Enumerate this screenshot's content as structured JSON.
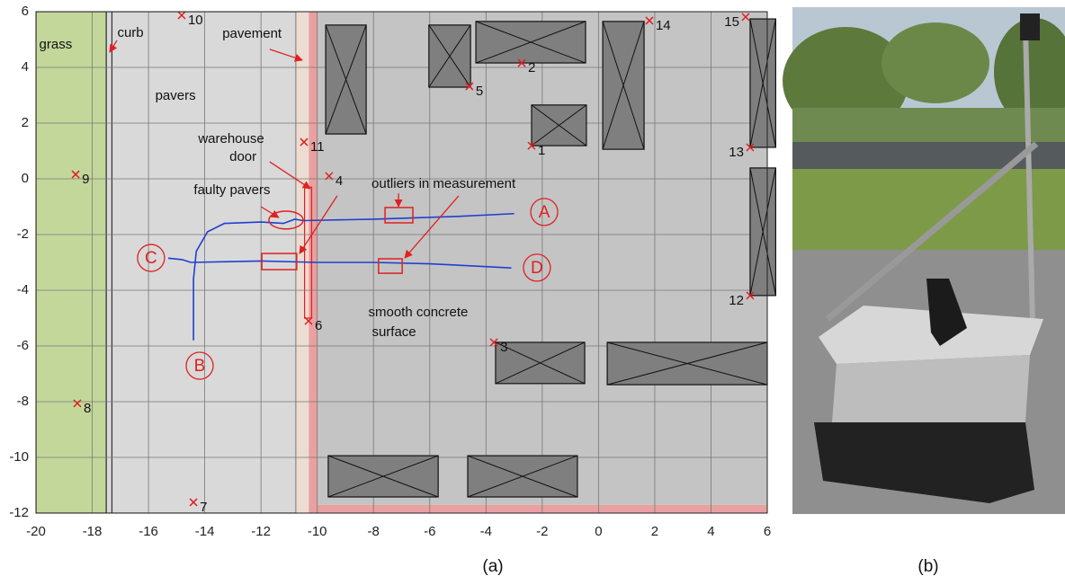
{
  "chart_data": {
    "type": "scatter",
    "xlim": [
      -20,
      6
    ],
    "ylim": [
      -12,
      6
    ],
    "xticks": [
      -20,
      -18,
      -16,
      -14,
      -12,
      -10,
      -8,
      -6,
      -4,
      -2,
      0,
      2,
      4,
      6
    ],
    "yticks": [
      -12,
      -10,
      -8,
      -6,
      -4,
      -2,
      0,
      2,
      4,
      6
    ],
    "grid": true,
    "regions": [
      {
        "x": [
          -20,
          -17.5
        ],
        "y": [
          -12,
          6
        ],
        "fill": "#c4d79b",
        "stroke": "#333"
      },
      {
        "x": [
          -17.5,
          -10.75
        ],
        "y": [
          -12,
          6
        ],
        "fill": "#d9d9d9",
        "stroke": "#333"
      },
      {
        "x": [
          -17.5,
          -17.3
        ],
        "y": [
          -12,
          6
        ],
        "fill": "#d9d9d9",
        "stroke": "#333"
      },
      {
        "x": [
          -10.75,
          -10.3
        ],
        "y": [
          -12,
          6
        ],
        "fill": "#ecdcd2",
        "stroke": "none"
      },
      {
        "x": [
          -10.3,
          -10.0
        ],
        "y": [
          -12,
          6
        ],
        "fill": "#e8a0a0",
        "stroke": "none"
      },
      {
        "x": [
          -10.0,
          6
        ],
        "y": [
          -12,
          -11.7
        ],
        "fill": "#e8a0a0",
        "stroke": "none"
      },
      {
        "x": [
          -10.0,
          6
        ],
        "y": [
          -11.7,
          6
        ],
        "fill": "#c4c4c4",
        "stroke": "none"
      },
      {
        "x": [
          -10.45,
          -10.2
        ],
        "y": [
          -5.0,
          -0.3
        ],
        "fill": "none",
        "stroke": "#e02020"
      }
    ],
    "obstacles": [
      {
        "x": [
          -9.7,
          -8.26
        ],
        "y": [
          1.61,
          5.52
        ]
      },
      {
        "x": [
          -6.03,
          -4.55
        ],
        "y": [
          3.29,
          5.52
        ]
      },
      {
        "x": [
          -4.36,
          -0.46
        ],
        "y": [
          4.16,
          5.65
        ]
      },
      {
        "x": [
          -2.38,
          -0.43
        ],
        "y": [
          1.19,
          2.65
        ]
      },
      {
        "x": [
          0.15,
          1.62
        ],
        "y": [
          1.06,
          5.65
        ]
      },
      {
        "x": [
          5.39,
          6.3
        ],
        "y": [
          1.13,
          5.74
        ]
      },
      {
        "x": [
          5.39,
          6.3
        ],
        "y": [
          -4.19,
          0.39
        ]
      },
      {
        "x": [
          -3.66,
          -0.49
        ],
        "y": [
          -7.35,
          -5.87
        ]
      },
      {
        "x": [
          0.31,
          6.0
        ],
        "y": [
          -7.39,
          -5.87
        ]
      },
      {
        "x": [
          -9.61,
          -5.7
        ],
        "y": [
          -11.42,
          -9.94
        ]
      },
      {
        "x": [
          -4.65,
          -0.75
        ],
        "y": [
          -11.42,
          -9.94
        ]
      }
    ],
    "series": [
      {
        "color": "#1f3fd0",
        "x": [
          -14.4,
          -14.4,
          -14.3,
          -13.9,
          -13.3,
          -12,
          -11.2,
          -10.8,
          -10.5,
          -8,
          -5,
          -3
        ],
        "y": [
          -5.8,
          -3.6,
          -2.6,
          -1.9,
          -1.6,
          -1.55,
          -1.6,
          -1.45,
          -1.5,
          -1.45,
          -1.35,
          -1.25
        ]
      },
      {
        "color": "#1f3fd0",
        "x": [
          -15.3,
          -14.8,
          -14.5,
          -12,
          -10,
          -8,
          -6,
          -4,
          -3.1
        ],
        "y": [
          -2.85,
          -2.9,
          -3.0,
          -2.95,
          -3.0,
          -3.0,
          -3.05,
          -3.15,
          -3.2
        ]
      }
    ],
    "landmarks": {
      "color": "#e02020",
      "labels": [
        "1",
        "2",
        "3",
        "4",
        "5",
        "6",
        "7",
        "8",
        "9",
        "10",
        "11",
        "12",
        "13",
        "14",
        "15"
      ],
      "x": [
        -2.38,
        -2.73,
        -3.72,
        -9.58,
        -4.59,
        -10.31,
        -14.4,
        -18.53,
        -18.59,
        -14.82,
        -10.47,
        5.39,
        5.39,
        1.81,
        5.23
      ],
      "y": [
        1.19,
        4.16,
        -5.87,
        0.1,
        3.32,
        -5.1,
        -11.61,
        -8.06,
        0.16,
        5.87,
        1.32,
        -4.19,
        1.13,
        5.68,
        5.81
      ],
      "anchor": [
        "start",
        "start",
        "start",
        "start",
        "start",
        "start",
        "start",
        "start",
        "start",
        "start",
        "start",
        "end",
        "end",
        "start",
        "end"
      ]
    },
    "highlights": [
      {
        "x": [
          -7.59,
          -6.6
        ],
        "y": [
          -1.58,
          -1.03
        ]
      },
      {
        "x": [
          -11.97,
          -10.73
        ],
        "y": [
          -3.26,
          -2.68
        ]
      },
      {
        "x": [
          -7.82,
          -6.98
        ],
        "y": [
          -3.39,
          -2.87
        ]
      }
    ],
    "ellipse": {
      "cx": -11.11,
      "cy": -1.48,
      "rx": 0.61,
      "ry": 0.32
    },
    "annotations": [
      {
        "text": "grass",
        "x": -19.3,
        "y": 4.81
      },
      {
        "text": "curb",
        "x": -16.64,
        "y": 5.23,
        "arrows": [
          {
            "from": [
              -17.12,
              4.97
            ],
            "to": [
              -17.38,
              4.55
            ]
          }
        ]
      },
      {
        "text": "pavers",
        "x": -15.04,
        "y": 2.97
      },
      {
        "text": "pavement",
        "x": -12.32,
        "y": 5.19,
        "arrows": [
          {
            "from": [
              -11.69,
              4.65
            ],
            "to": [
              -10.53,
              4.26
            ]
          }
        ]
      },
      {
        "text": "warehouse",
        "x": -13.06,
        "y": 1.42
      },
      {
        "text": "door",
        "x": -12.64,
        "y": 0.77,
        "arrows": [
          {
            "from": [
              -11.69,
              0.61
            ],
            "to": [
              -10.25,
              -0.35
            ]
          }
        ]
      },
      {
        "text": "faulty pavers",
        "x": -13.03,
        "y": -0.42,
        "arrows": [
          {
            "from": [
              -12.0,
              -1.0
            ],
            "to": [
              -11.37,
              -1.39
            ]
          }
        ]
      },
      {
        "text": "outliers in measurement",
        "x": -5.51,
        "y": -0.19,
        "arrows": [
          {
            "from": [
              -7.11,
              -0.52
            ],
            "to": [
              -7.11,
              -1.0
            ]
          },
          {
            "from": [
              -9.29,
              -0.61
            ],
            "to": [
              -10.63,
              -2.68
            ]
          },
          {
            "from": [
              -4.97,
              -0.61
            ],
            "to": [
              -6.89,
              -2.84
            ]
          }
        ]
      },
      {
        "text": "smooth concrete",
        "x": -6.41,
        "y": -4.81
      },
      {
        "text": "surface",
        "x": -7.27,
        "y": -5.52
      }
    ],
    "callouts": [
      {
        "text": "A",
        "x": -1.93,
        "y": -1.19
      },
      {
        "text": "B",
        "x": -14.18,
        "y": -6.71
      },
      {
        "text": "C",
        "x": -15.91,
        "y": -2.84
      },
      {
        "text": "D",
        "x": -2.19,
        "y": -3.19
      }
    ]
  },
  "panel_labels": [
    "(a)",
    "(b)"
  ]
}
